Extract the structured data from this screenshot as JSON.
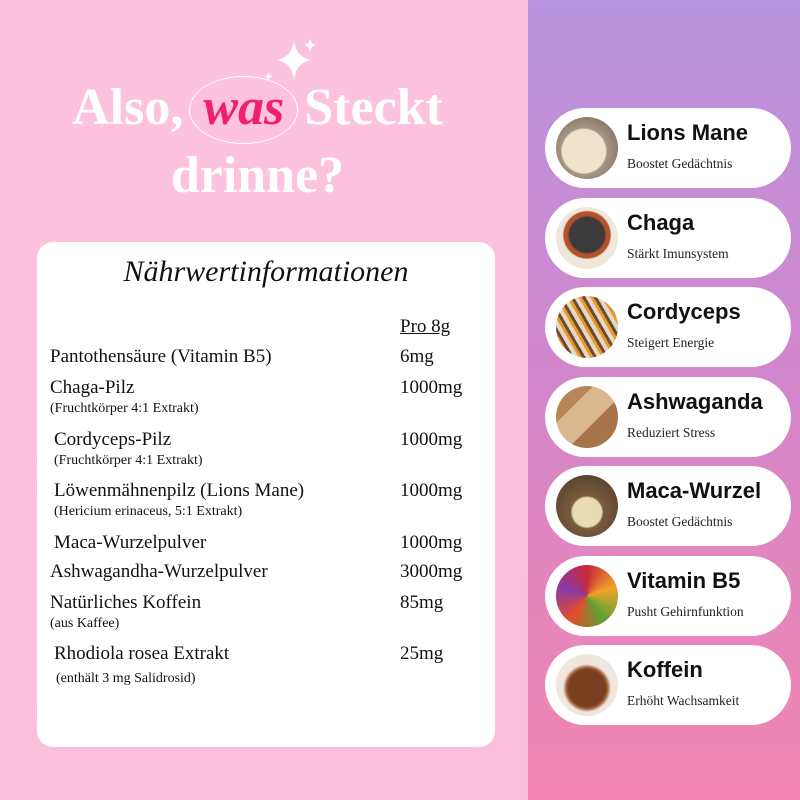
{
  "headline": {
    "line1_a": "Also,",
    "line1_b": "was",
    "line1_c": "Steckt",
    "line2": "drinne?"
  },
  "panel": {
    "title": "Nährwertinformationen",
    "column_header": "Pro 8g",
    "rows": [
      {
        "name": "Pantothensäure (Vitamin B5)",
        "sub": "",
        "amount": "6mg"
      },
      {
        "name": "Chaga-Pilz",
        "sub": "(Fruchtkörper 4:1 Extrakt)",
        "amount": "1000mg"
      },
      {
        "name": "Cordyceps-Pilz",
        "sub": "(Fruchtkörper 4:1 Extrakt)",
        "amount": "1000mg"
      },
      {
        "name": "Löwenmähnenpilz (Lions Mane)",
        "sub": "(Hericium erinaceus, 5:1 Extrakt)",
        "amount": "1000mg"
      },
      {
        "name": "Maca-Wurzelpulver",
        "sub": "",
        "amount": "1000mg"
      },
      {
        "name": "Ashwagandha-Wurzelpulver",
        "sub": "",
        "amount": "3000mg"
      },
      {
        "name": "Natürliches Koffein",
        "sub": "(aus Kaffee)",
        "amount": "85mg"
      },
      {
        "name": "Rhodiola rosea Extrakt",
        "sub": "(enthält 3 mg Salidrosid)",
        "amount": "25mg"
      }
    ]
  },
  "ingredients": [
    {
      "name": "Lions Mane",
      "desc": "Boostet Gedächtnis",
      "image": "lions-mane-mushroom"
    },
    {
      "name": "Chaga",
      "desc": "Stärkt Imunsystem",
      "image": "chaga-mushroom"
    },
    {
      "name": "Cordyceps",
      "desc": "Steigert Energie",
      "image": "cordyceps"
    },
    {
      "name": "Ashwaganda",
      "desc": "Reduziert Stress",
      "image": "ashwagandha-root"
    },
    {
      "name": "Maca-Wurzel",
      "desc": "Boostet Gedächtnis",
      "image": "maca-root"
    },
    {
      "name": "Vitamin B5",
      "desc": "Pusht Gehirnfunktion",
      "image": "vegetables"
    },
    {
      "name": "Koffein",
      "desc": "Erhöht Wachsamkeit",
      "image": "coffee-powder"
    }
  ],
  "colors": {
    "accent": "#f0206f",
    "left_bg": "#fcc3de",
    "right_bg_top": "#b995e0",
    "right_bg_bottom": "#f386b0"
  }
}
